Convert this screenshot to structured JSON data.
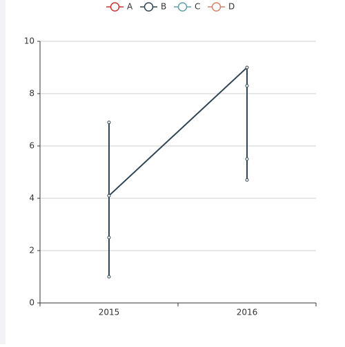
{
  "chart_data": {
    "type": "line",
    "categories": [
      "2015",
      "2016"
    ],
    "series": [
      {
        "name": "A",
        "color": "#c23531",
        "x": [],
        "values": []
      },
      {
        "name": "B",
        "color": "#2f4554",
        "x": [
          "2015",
          "2015",
          "2015",
          "2015",
          "2016",
          "2016",
          "2016",
          "2016"
        ],
        "values": [
          6.9,
          1.0,
          2.5,
          4.1,
          9.0,
          4.7,
          5.5,
          8.3
        ]
      },
      {
        "name": "C",
        "color": "#61a0a8",
        "x": [],
        "values": []
      },
      {
        "name": "D",
        "color": "#d48265",
        "x": [],
        "values": []
      }
    ],
    "ylim": [
      0,
      10
    ],
    "yticks": [
      0,
      2,
      4,
      6,
      8,
      10
    ],
    "grid": true,
    "legend": "top"
  }
}
